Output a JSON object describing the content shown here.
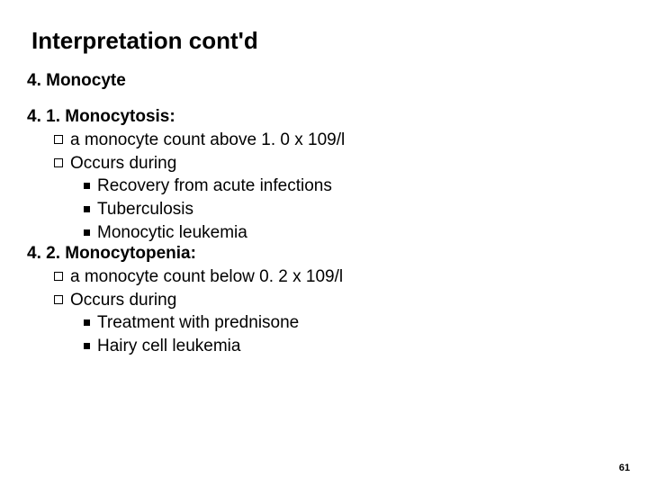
{
  "title": "Interpretation cont'd",
  "section": "4. Monocyte",
  "sub1": {
    "heading": "4. 1. Monocytosis:",
    "bullets": [
      "a monocyte count above 1. 0 x 109/l",
      "Occurs during"
    ],
    "subbullets": [
      "Recovery from acute infections",
      "Tuberculosis",
      "Monocytic leukemia"
    ]
  },
  "sub2": {
    "heading": "4. 2. Monocytopenia:",
    "bullets": [
      "a monocyte count below 0. 2 x 109/l",
      "Occurs during"
    ],
    "subbullets": [
      "Treatment with prednisone",
      "Hairy cell leukemia"
    ]
  },
  "page": "61",
  "colors": {
    "bg": "#ffffff",
    "text": "#000000"
  },
  "fonts": {
    "title_size": 26,
    "body_size": 19,
    "page_size": 11
  }
}
